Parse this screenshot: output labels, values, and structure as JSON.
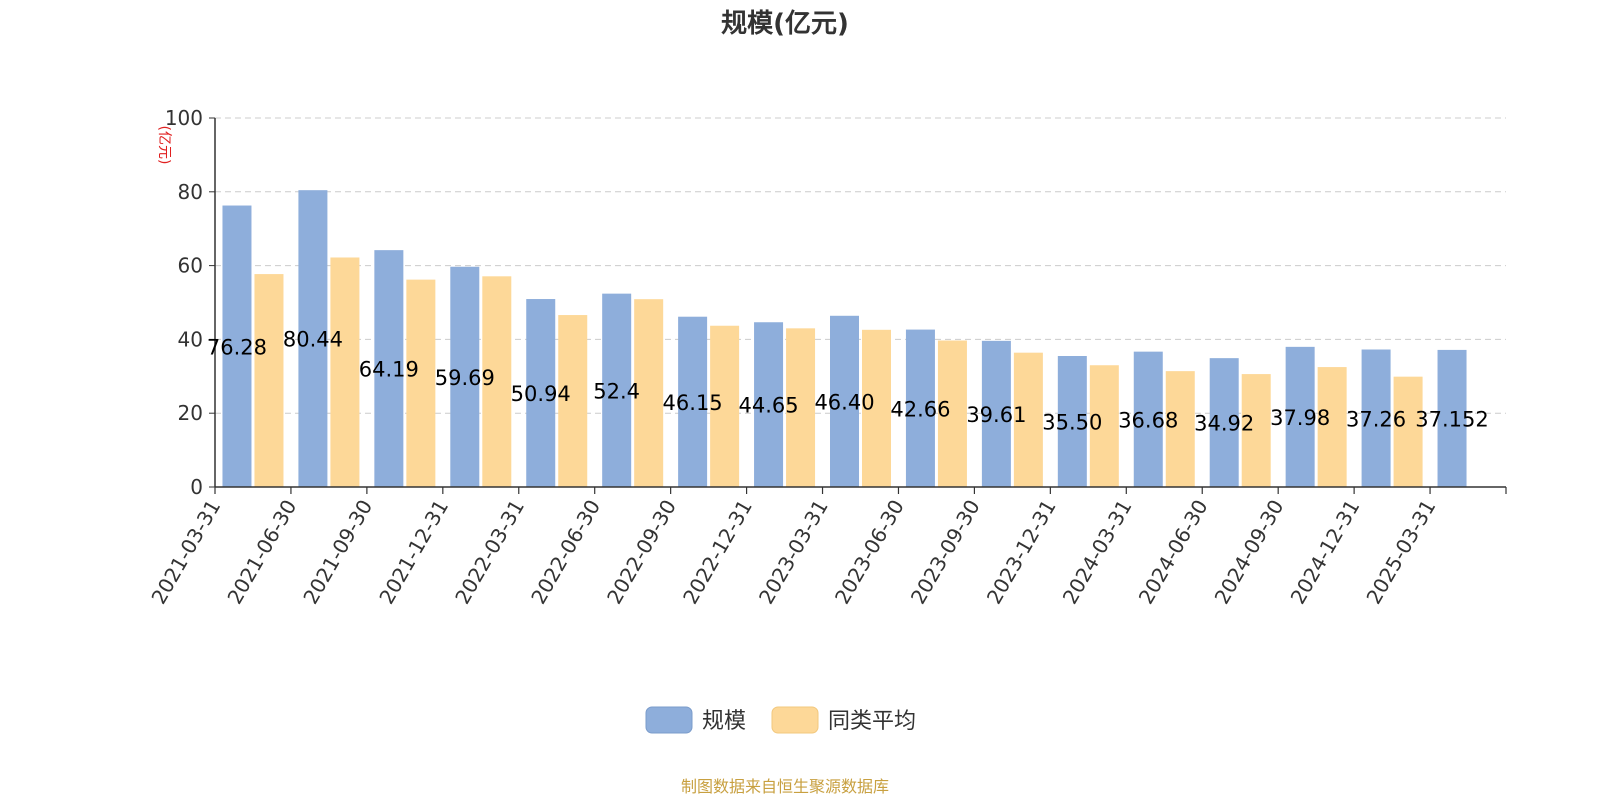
{
  "chart_data": {
    "type": "bar",
    "title": "规模(亿元)",
    "ylabel": "(亿元)",
    "xlabel": "",
    "ylim": [
      0,
      100
    ],
    "yticks": [
      0,
      20,
      40,
      60,
      80,
      100
    ],
    "grid": true,
    "legend_position": "bottom",
    "categories": [
      "2021-03-31",
      "2021-06-30",
      "2021-09-30",
      "2021-12-31",
      "2022-03-31",
      "2022-06-30",
      "2022-09-30",
      "2022-12-31",
      "2023-03-31",
      "2023-06-30",
      "2023-09-30",
      "2023-12-31",
      "2024-03-31",
      "2024-06-30",
      "2024-09-30",
      "2024-12-31",
      "2025-03-31"
    ],
    "series": [
      {
        "name": "规模",
        "color": "#8eaedb",
        "values": [
          76.28,
          80.44,
          64.19,
          59.69,
          50.94,
          52.4,
          46.15,
          44.65,
          46.4,
          42.66,
          39.61,
          35.5,
          36.68,
          34.92,
          37.98,
          37.26,
          37.152
        ],
        "labels": [
          "76.28",
          "80.44",
          "64.19",
          "59.69",
          "50.94",
          "52.4",
          "46.15",
          "44.65",
          "46.40",
          "42.66",
          "39.61",
          "35.50",
          "36.68",
          "34.92",
          "37.98",
          "37.26",
          "37.152"
        ]
      },
      {
        "name": "同类平均",
        "color": "#fdd898",
        "values": [
          57.7,
          62.2,
          56.2,
          57.1,
          46.6,
          50.9,
          43.7,
          43.0,
          42.6,
          39.7,
          36.4,
          33.0,
          31.4,
          30.6,
          32.5,
          29.9,
          null
        ]
      }
    ],
    "source": "制图数据来自恒生聚源数据库"
  }
}
